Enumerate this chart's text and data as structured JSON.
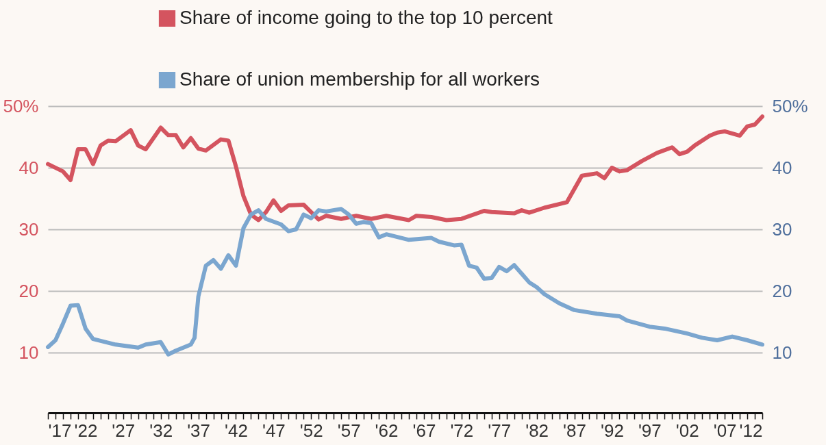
{
  "chart_data": {
    "type": "line",
    "xlim": [
      1917,
      2012
    ],
    "ylim": [
      0,
      50
    ],
    "y2lim": [
      0,
      50
    ],
    "xticks": [
      {
        "value": 1917,
        "label": "'17"
      },
      {
        "value": 1918,
        "label": null
      },
      {
        "value": 1919,
        "label": null
      },
      {
        "value": 1920,
        "label": null
      },
      {
        "value": 1921,
        "label": null
      },
      {
        "value": 1922,
        "label": "'22"
      },
      {
        "value": 1923,
        "label": null
      },
      {
        "value": 1924,
        "label": null
      },
      {
        "value": 1925,
        "label": null
      },
      {
        "value": 1926,
        "label": null
      },
      {
        "value": 1927,
        "label": "'27"
      },
      {
        "value": 1928,
        "label": null
      },
      {
        "value": 1929,
        "label": null
      },
      {
        "value": 1930,
        "label": null
      },
      {
        "value": 1931,
        "label": null
      },
      {
        "value": 1932,
        "label": "'32"
      },
      {
        "value": 1933,
        "label": null
      },
      {
        "value": 1934,
        "label": null
      },
      {
        "value": 1935,
        "label": null
      },
      {
        "value": 1936,
        "label": null
      },
      {
        "value": 1937,
        "label": "'37"
      },
      {
        "value": 1938,
        "label": null
      },
      {
        "value": 1939,
        "label": null
      },
      {
        "value": 1940,
        "label": null
      },
      {
        "value": 1941,
        "label": null
      },
      {
        "value": 1942,
        "label": "'42"
      },
      {
        "value": 1943,
        "label": null
      },
      {
        "value": 1944,
        "label": null
      },
      {
        "value": 1945,
        "label": null
      },
      {
        "value": 1946,
        "label": null
      },
      {
        "value": 1947,
        "label": "'47"
      },
      {
        "value": 1948,
        "label": null
      },
      {
        "value": 1949,
        "label": null
      },
      {
        "value": 1950,
        "label": null
      },
      {
        "value": 1951,
        "label": null
      },
      {
        "value": 1952,
        "label": "'52"
      },
      {
        "value": 1953,
        "label": null
      },
      {
        "value": 1954,
        "label": null
      },
      {
        "value": 1955,
        "label": null
      },
      {
        "value": 1956,
        "label": null
      },
      {
        "value": 1957,
        "label": "'57"
      },
      {
        "value": 1958,
        "label": null
      },
      {
        "value": 1959,
        "label": null
      },
      {
        "value": 1960,
        "label": null
      },
      {
        "value": 1961,
        "label": null
      },
      {
        "value": 1962,
        "label": "'62"
      },
      {
        "value": 1963,
        "label": null
      },
      {
        "value": 1964,
        "label": null
      },
      {
        "value": 1965,
        "label": null
      },
      {
        "value": 1966,
        "label": null
      },
      {
        "value": 1967,
        "label": "'67"
      },
      {
        "value": 1968,
        "label": null
      },
      {
        "value": 1969,
        "label": null
      },
      {
        "value": 1970,
        "label": null
      },
      {
        "value": 1971,
        "label": null
      },
      {
        "value": 1972,
        "label": "'72"
      },
      {
        "value": 1973,
        "label": null
      },
      {
        "value": 1974,
        "label": null
      },
      {
        "value": 1975,
        "label": null
      },
      {
        "value": 1976,
        "label": null
      },
      {
        "value": 1977,
        "label": "'77"
      },
      {
        "value": 1978,
        "label": null
      },
      {
        "value": 1979,
        "label": null
      },
      {
        "value": 1980,
        "label": null
      },
      {
        "value": 1981,
        "label": null
      },
      {
        "value": 1982,
        "label": "'82"
      },
      {
        "value": 1983,
        "label": null
      },
      {
        "value": 1984,
        "label": null
      },
      {
        "value": 1985,
        "label": null
      },
      {
        "value": 1986,
        "label": null
      },
      {
        "value": 1987,
        "label": "'87"
      },
      {
        "value": 1988,
        "label": null
      },
      {
        "value": 1989,
        "label": null
      },
      {
        "value": 1990,
        "label": null
      },
      {
        "value": 1991,
        "label": null
      },
      {
        "value": 1992,
        "label": "'92"
      },
      {
        "value": 1993,
        "label": null
      },
      {
        "value": 1994,
        "label": null
      },
      {
        "value": 1995,
        "label": null
      },
      {
        "value": 1996,
        "label": null
      },
      {
        "value": 1997,
        "label": "'97"
      },
      {
        "value": 1998,
        "label": null
      },
      {
        "value": 1999,
        "label": null
      },
      {
        "value": 2000,
        "label": null
      },
      {
        "value": 2001,
        "label": null
      },
      {
        "value": 2002,
        "label": "'02"
      },
      {
        "value": 2003,
        "label": null
      },
      {
        "value": 2004,
        "label": null
      },
      {
        "value": 2005,
        "label": null
      },
      {
        "value": 2006,
        "label": null
      },
      {
        "value": 2007,
        "label": "'07"
      },
      {
        "value": 2008,
        "label": null
      },
      {
        "value": 2009,
        "label": null
      },
      {
        "value": 2010,
        "label": null
      },
      {
        "value": 2011,
        "label": null
      },
      {
        "value": 2012,
        "label": "'12"
      }
    ],
    "yticks": [
      10,
      20,
      30,
      40,
      {
        "value": 50,
        "label": "50%"
      }
    ],
    "y2ticks": [
      10,
      20,
      30,
      40,
      {
        "value": 50,
        "label": "50%"
      }
    ],
    "grid": "y",
    "legend": "top",
    "line_style": "solid",
    "series": [
      {
        "name": "Share of income going to the top 10 percent",
        "color": "#d4545f",
        "x": [
          1917,
          1919,
          1920,
          1921,
          1922,
          1923,
          1924,
          1925,
          1926,
          1928,
          1929,
          1930,
          1932,
          1933,
          1934,
          1935,
          1936,
          1937,
          1938,
          1940,
          1941,
          1942,
          1943,
          1944,
          1945,
          1946,
          1947,
          1948,
          1949,
          1951,
          1952,
          1953,
          1954,
          1956,
          1958,
          1960,
          1962,
          1965,
          1966,
          1968,
          1970,
          1972,
          1975,
          1976,
          1979,
          1980,
          1981,
          1983,
          1986,
          1988,
          1990,
          1991,
          1992,
          1993,
          1994,
          1996,
          1998,
          2000,
          2001,
          2002,
          2003,
          2005,
          2006,
          2007,
          2009,
          2010,
          2011,
          2012
        ],
        "values": [
          40.6,
          39.4,
          38.0,
          43.0,
          43.0,
          40.6,
          43.6,
          44.4,
          44.3,
          46.1,
          43.6,
          43.0,
          46.5,
          45.3,
          45.3,
          43.3,
          44.8,
          43.1,
          42.8,
          44.6,
          44.4,
          40.2,
          35.4,
          32.4,
          31.5,
          32.8,
          34.7,
          33.0,
          33.9,
          34.0,
          32.8,
          31.6,
          32.2,
          31.7,
          32.2,
          31.7,
          32.2,
          31.5,
          32.2,
          32.0,
          31.5,
          31.7,
          33.0,
          32.8,
          32.6,
          33.1,
          32.7,
          33.5,
          34.4,
          38.7,
          39.1,
          38.3,
          40.0,
          39.4,
          39.6,
          41.1,
          42.4,
          43.3,
          42.2,
          42.6,
          43.6,
          45.2,
          45.7,
          45.9,
          45.2,
          46.7,
          47.0,
          48.3
        ]
      },
      {
        "name": "Share of union membership for all workers",
        "color": "#7ba6cf",
        "x": [
          1917,
          1918,
          1919,
          1920,
          1921,
          1922,
          1923,
          1926,
          1929,
          1930,
          1932,
          1933,
          1934,
          1936,
          1936.5,
          1937,
          1938,
          1939,
          1940,
          1941,
          1942,
          1943,
          1944,
          1945,
          1946,
          1948,
          1949,
          1950,
          1951,
          1952,
          1953,
          1954,
          1956,
          1957,
          1958,
          1959,
          1960,
          1961,
          1962,
          1965,
          1968,
          1969,
          1971,
          1972,
          1973,
          1974,
          1975,
          1976,
          1977,
          1978,
          1979,
          1981,
          1982,
          1983,
          1985,
          1987,
          1990,
          1993,
          1994,
          1997,
          1999,
          2002,
          2004,
          2006,
          2008,
          2010,
          2012
        ],
        "values": [
          10.9,
          12.0,
          14.7,
          17.6,
          17.7,
          13.9,
          12.2,
          11.3,
          10.8,
          11.3,
          11.7,
          9.7,
          10.3,
          11.3,
          12.4,
          19.1,
          24.1,
          25.0,
          23.6,
          25.8,
          24.1,
          30.2,
          32.4,
          33.1,
          31.7,
          30.8,
          29.7,
          30.0,
          32.4,
          31.8,
          33.1,
          32.9,
          33.3,
          32.4,
          30.9,
          31.2,
          31.0,
          28.7,
          29.2,
          28.3,
          28.6,
          28.0,
          27.4,
          27.5,
          24.1,
          23.8,
          22.0,
          22.1,
          23.9,
          23.2,
          24.2,
          21.4,
          20.6,
          19.5,
          18.0,
          16.9,
          16.3,
          15.9,
          15.2,
          14.2,
          13.9,
          13.1,
          12.4,
          12.0,
          12.6,
          12.0,
          11.3
        ]
      }
    ]
  }
}
